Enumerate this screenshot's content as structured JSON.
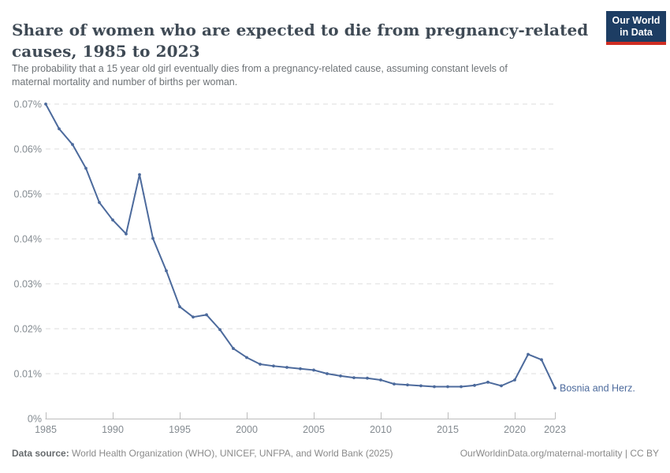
{
  "header": {
    "title_lines": [
      "Share of women who are expected to die from pregnancy-related",
      "causes, 1985 to 2023"
    ],
    "subtitle_lines": [
      "The probability that a 15 year old girl eventually dies from a pregnancy-related cause, assuming constant levels of",
      "maternal mortality and number of births per woman."
    ],
    "logo": {
      "line1": "Our World",
      "line2": "in Data",
      "bg_color": "#1d3d63",
      "accent_color": "#cf2d23"
    }
  },
  "chart_data": {
    "type": "line",
    "title": "Share of women who are expected to die from pregnancy-related causes, 1985 to 2023",
    "xlabel": "",
    "ylabel": "",
    "x": [
      1985,
      1986,
      1987,
      1988,
      1989,
      1990,
      1991,
      1992,
      1993,
      1994,
      1995,
      1996,
      1997,
      1998,
      1999,
      2000,
      2001,
      2002,
      2003,
      2004,
      2005,
      2006,
      2007,
      2008,
      2009,
      2010,
      2011,
      2012,
      2013,
      2014,
      2015,
      2016,
      2017,
      2018,
      2019,
      2020,
      2021,
      2022,
      2023
    ],
    "series": [
      {
        "name": "Bosnia and Herz.",
        "color": "#4c6a9c",
        "values": [
          0.07,
          0.0645,
          0.061,
          0.0557,
          0.0481,
          0.0442,
          0.0411,
          0.0543,
          0.0401,
          0.0329,
          0.0249,
          0.0226,
          0.0231,
          0.0198,
          0.0156,
          0.0136,
          0.0121,
          0.0117,
          0.0114,
          0.0111,
          0.0108,
          0.01,
          0.0095,
          0.0091,
          0.009,
          0.0086,
          0.0077,
          0.0075,
          0.0073,
          0.0071,
          0.0071,
          0.0071,
          0.0074,
          0.0081,
          0.0073,
          0.0086,
          0.0143,
          0.0131,
          0.0068
        ]
      }
    ],
    "x_ticks": [
      1985,
      1990,
      1995,
      2000,
      2005,
      2010,
      2015,
      2020,
      2023
    ],
    "y_ticks": [
      0,
      0.01,
      0.02,
      0.03,
      0.04,
      0.05,
      0.06,
      0.07
    ],
    "y_tick_suffix": "%",
    "xlim": [
      1985,
      2023
    ],
    "ylim": [
      0,
      0.07
    ],
    "grid": "horizontal-dashed",
    "legend": "inline-end-label",
    "style": {
      "line_color": "#4c6a9c",
      "grid_color": "#dcdcdc",
      "axis_color": "#bcbcbc",
      "tick_label_color": "#848b91",
      "marker_radius": 1.9
    }
  },
  "footer": {
    "source_label": "Data source:",
    "source_text": " World Health Organization (WHO), UNICEF, UNFPA, and World Bank (2025)",
    "license_text": "OurWorldinData.org/maternal-mortality | CC BY"
  }
}
